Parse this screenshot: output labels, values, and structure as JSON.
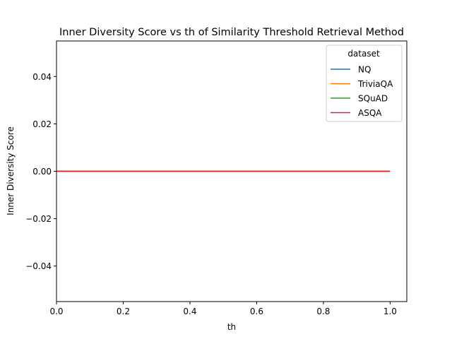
{
  "chart_data": {
    "type": "line",
    "title": "Inner Diversity Score vs th of Similarity Threshold Retrieval Method",
    "xlabel": "th",
    "ylabel": "Inner Diversity Score",
    "xlim": [
      0.0,
      1.05
    ],
    "ylim": [
      -0.055,
      0.055
    ],
    "xticks": [
      0.0,
      0.2,
      0.4,
      0.6,
      0.8,
      1.0
    ],
    "xtick_labels": [
      "0.0",
      "0.2",
      "0.4",
      "0.6",
      "0.8",
      "1.0"
    ],
    "yticks": [
      -0.04,
      -0.02,
      0.0,
      0.02,
      0.04
    ],
    "ytick_labels": [
      "−0.04",
      "−0.02",
      "0.00",
      "0.02",
      "0.04"
    ],
    "grid": false,
    "legend": {
      "title": "dataset",
      "placement": "top-right"
    },
    "series": [
      {
        "name": "NQ",
        "color": "#1f77b4",
        "x": [
          0.0,
          0.25,
          0.5,
          0.75,
          1.0
        ],
        "y": [
          0,
          0,
          0,
          0,
          0
        ]
      },
      {
        "name": "TriviaQA",
        "color": "#ff7f0e",
        "x": [
          0.0,
          0.25,
          0.5,
          0.75,
          1.0
        ],
        "y": [
          0,
          0,
          0,
          0,
          0
        ]
      },
      {
        "name": "SQuAD",
        "color": "#2ca02c",
        "x": [
          0.0,
          0.25,
          0.5,
          0.75,
          1.0
        ],
        "y": [
          0,
          0,
          0,
          0,
          0
        ]
      },
      {
        "name": "ASQA",
        "color": "#d62728",
        "x": [
          0.0,
          0.25,
          0.5,
          0.75,
          1.0
        ],
        "y": [
          0,
          0,
          0,
          0,
          0
        ]
      }
    ]
  }
}
